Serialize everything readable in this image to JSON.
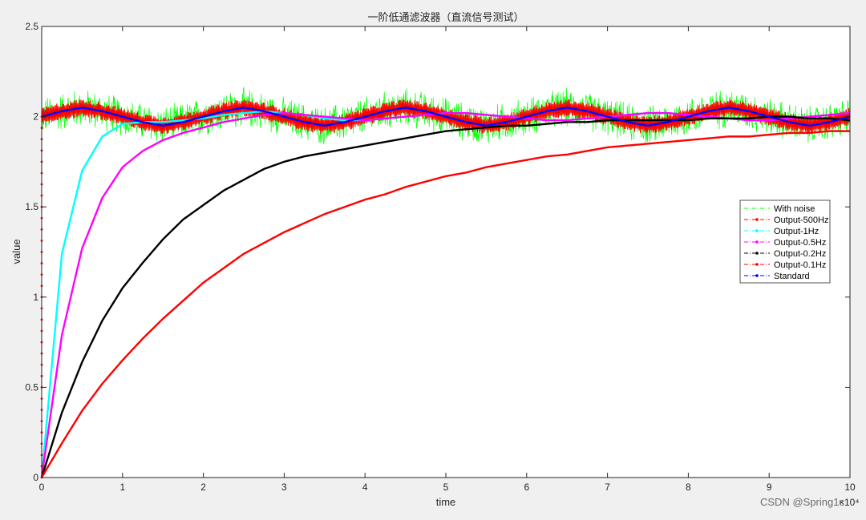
{
  "chart_data": {
    "type": "line",
    "title": "一阶低通滤波器（直流信号测试）",
    "xlabel": "time",
    "ylabel": "value",
    "xlim": [
      0,
      100000
    ],
    "ylim": [
      0,
      2.5
    ],
    "x_ticks": [
      0,
      10000,
      20000,
      30000,
      40000,
      50000,
      60000,
      70000,
      80000,
      90000,
      100000
    ],
    "x_tick_labels": [
      "0",
      "1",
      "2",
      "3",
      "4",
      "5",
      "6",
      "7",
      "8",
      "9",
      "10"
    ],
    "x_exponent_label": "×10⁴",
    "y_ticks": [
      0,
      0.5,
      1,
      1.5,
      2,
      2.5
    ],
    "y_tick_labels": [
      "0",
      "0.5",
      "1",
      "1.5",
      "2",
      "2.5"
    ],
    "grid": false,
    "legend_position": "right",
    "x": [
      0,
      2500,
      5000,
      7500,
      10000,
      12500,
      15000,
      17500,
      20000,
      22500,
      25000,
      27500,
      30000,
      32500,
      35000,
      37500,
      40000,
      42500,
      45000,
      47500,
      50000,
      52500,
      55000,
      57500,
      60000,
      62500,
      65000,
      67500,
      70000,
      72500,
      75000,
      77500,
      80000,
      82500,
      85000,
      87500,
      90000,
      92500,
      95000,
      97500,
      100000
    ],
    "series": [
      {
        "name": "With noise",
        "color": "#00ff00",
        "style": "noise",
        "values": [
          2.0,
          2.03,
          2.05,
          2.03,
          2.0,
          1.97,
          1.95,
          1.97,
          2.0,
          2.03,
          2.05,
          2.03,
          2.0,
          1.97,
          1.95,
          1.97,
          2.0,
          2.03,
          2.05,
          2.03,
          2.0,
          1.97,
          1.95,
          1.97,
          2.0,
          2.03,
          2.05,
          2.03,
          2.0,
          1.97,
          1.95,
          1.97,
          2.0,
          2.03,
          2.05,
          2.03,
          2.0,
          1.97,
          1.95,
          1.97,
          2.0
        ],
        "noise_amplitude": 0.12
      },
      {
        "name": "Output-500Hz",
        "color": "#ff0000",
        "style": "band",
        "values": [
          2.0,
          2.03,
          2.05,
          2.03,
          2.0,
          1.97,
          1.95,
          1.97,
          2.0,
          2.03,
          2.05,
          2.03,
          2.0,
          1.97,
          1.95,
          1.97,
          2.0,
          2.03,
          2.05,
          2.03,
          2.0,
          1.97,
          1.95,
          1.97,
          2.0,
          2.03,
          2.05,
          2.03,
          2.0,
          1.97,
          1.95,
          1.97,
          2.0,
          2.03,
          2.05,
          2.03,
          2.0,
          1.97,
          1.95,
          1.97,
          2.0
        ],
        "band_width": 0.05
      },
      {
        "name": "Output-1Hz",
        "color": "#00ffff",
        "style": "line",
        "values": [
          0.0,
          1.24,
          1.7,
          1.89,
          1.96,
          1.97,
          1.97,
          1.98,
          1.99,
          2.01,
          2.02,
          2.03,
          2.02,
          2.01,
          1.99,
          1.98,
          1.98,
          1.99,
          2.0,
          2.01,
          2.02,
          2.02,
          2.01,
          2.0,
          1.99,
          1.98,
          1.98,
          1.99,
          2.0,
          2.01,
          2.02,
          2.02,
          2.01,
          2.0,
          1.99,
          1.98,
          1.98,
          1.99,
          2.0,
          2.01,
          2.02
        ]
      },
      {
        "name": "Output-0.5Hz",
        "color": "#ff00ff",
        "style": "line",
        "values": [
          0.0,
          0.79,
          1.27,
          1.55,
          1.72,
          1.81,
          1.87,
          1.91,
          1.94,
          1.97,
          1.99,
          2.01,
          2.02,
          2.01,
          2.0,
          1.99,
          1.98,
          1.99,
          2.0,
          2.01,
          2.02,
          2.02,
          2.01,
          2.0,
          1.99,
          1.98,
          1.98,
          1.99,
          2.0,
          2.01,
          2.02,
          2.02,
          2.01,
          2.0,
          1.99,
          1.98,
          1.98,
          1.99,
          2.0,
          2.01,
          2.02
        ]
      },
      {
        "name": "Output-0.2Hz",
        "color": "#000000",
        "style": "line",
        "values": [
          0.0,
          0.36,
          0.64,
          0.87,
          1.05,
          1.19,
          1.32,
          1.43,
          1.51,
          1.59,
          1.65,
          1.71,
          1.75,
          1.78,
          1.8,
          1.82,
          1.84,
          1.86,
          1.88,
          1.9,
          1.92,
          1.93,
          1.94,
          1.95,
          1.95,
          1.96,
          1.97,
          1.97,
          1.98,
          1.98,
          1.98,
          1.98,
          1.98,
          1.99,
          1.99,
          1.99,
          2.0,
          2.0,
          1.99,
          1.99,
          1.98
        ]
      },
      {
        "name": "Output-0.1Hz",
        "color": "#ff0000",
        "style": "line",
        "values": [
          0.0,
          0.19,
          0.37,
          0.52,
          0.65,
          0.77,
          0.88,
          0.98,
          1.08,
          1.16,
          1.24,
          1.3,
          1.36,
          1.41,
          1.46,
          1.5,
          1.54,
          1.57,
          1.61,
          1.64,
          1.67,
          1.69,
          1.72,
          1.74,
          1.76,
          1.78,
          1.79,
          1.81,
          1.83,
          1.84,
          1.85,
          1.86,
          1.87,
          1.88,
          1.89,
          1.89,
          1.9,
          1.91,
          1.91,
          1.92,
          1.92
        ]
      },
      {
        "name": "Standard",
        "color": "#0000ff",
        "style": "line",
        "values": [
          2.0,
          2.03,
          2.05,
          2.03,
          2.0,
          1.97,
          1.95,
          1.97,
          2.0,
          2.03,
          2.05,
          2.03,
          2.0,
          1.97,
          1.95,
          1.97,
          2.0,
          2.03,
          2.05,
          2.03,
          2.0,
          1.97,
          1.95,
          1.97,
          2.0,
          2.03,
          2.05,
          2.03,
          2.0,
          1.97,
          1.95,
          1.97,
          2.0,
          2.03,
          2.05,
          2.03,
          2.0,
          1.97,
          1.95,
          1.97,
          2.0
        ]
      }
    ]
  },
  "watermark": "CSDN @Spring1c"
}
